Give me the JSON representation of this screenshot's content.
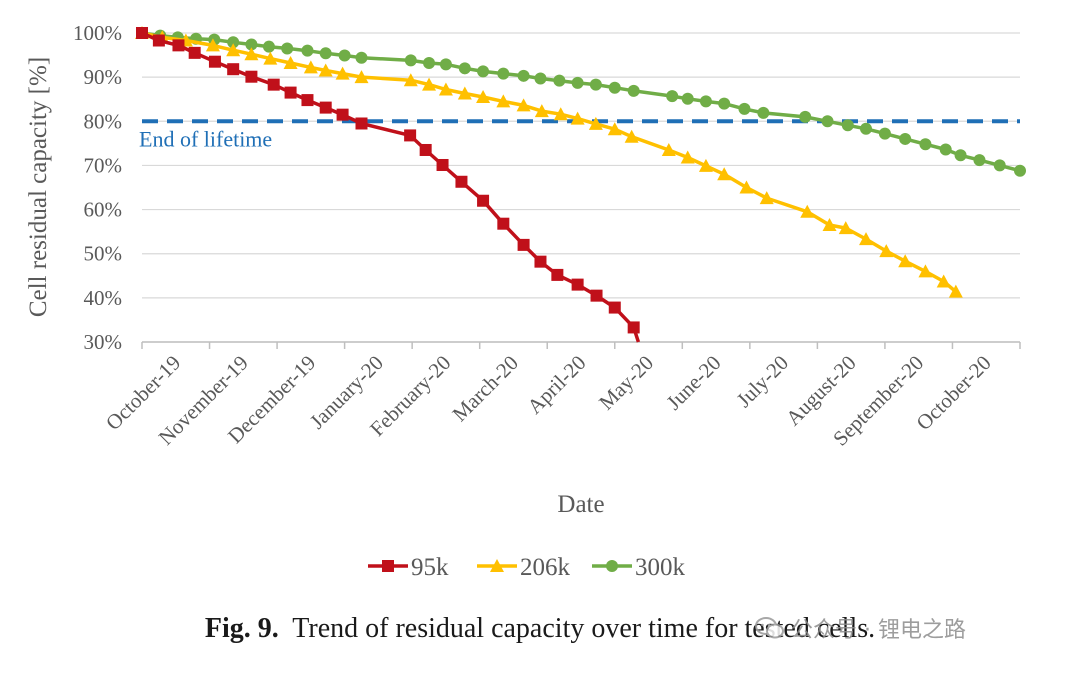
{
  "chart_data": {
    "type": "line",
    "xlabel": "Date",
    "ylabel": "Cell residual capacity [%]",
    "ylim": [
      30,
      100
    ],
    "y_ticks": [
      30,
      40,
      50,
      60,
      70,
      80,
      90,
      100
    ],
    "y_tick_labels": [
      "30%",
      "40%",
      "50%",
      "60%",
      "70%",
      "80%",
      "90%",
      "100%"
    ],
    "x_range_months": [
      0,
      13
    ],
    "categories": [
      "October-19",
      "November-19",
      "December-19",
      "January-20",
      "February-20",
      "March-20",
      "April-20",
      "May-20",
      "June-20",
      "July-20",
      "August-20",
      "September-20",
      "October-20"
    ],
    "reference_line": {
      "label": "End of lifetime",
      "value": 80,
      "color": "#1f6fb6"
    },
    "series": [
      {
        "name": "95k",
        "color": "#c0101a",
        "marker": "square",
        "points": [
          [
            0.0,
            100
          ],
          [
            0.25,
            98.3
          ],
          [
            0.54,
            97.2
          ],
          [
            0.78,
            95.5
          ],
          [
            1.08,
            93.5
          ],
          [
            1.35,
            91.8
          ],
          [
            1.62,
            90.1
          ],
          [
            1.95,
            88.3
          ],
          [
            2.2,
            86.5
          ],
          [
            2.45,
            84.8
          ],
          [
            2.72,
            83.1
          ],
          [
            2.97,
            81.5
          ],
          [
            3.25,
            79.5
          ],
          [
            3.97,
            76.8
          ],
          [
            4.2,
            73.5
          ],
          [
            4.45,
            70.1
          ],
          [
            4.73,
            66.3
          ],
          [
            5.05,
            62
          ],
          [
            5.35,
            56.8
          ],
          [
            5.65,
            52
          ],
          [
            5.9,
            48.2
          ],
          [
            6.15,
            45.2
          ],
          [
            6.45,
            43
          ],
          [
            6.73,
            40.5
          ],
          [
            7.0,
            37.8
          ],
          [
            7.28,
            33.3
          ],
          [
            7.35,
            30
          ]
        ]
      },
      {
        "name": "206k",
        "color": "#ffc000",
        "marker": "triangle",
        "points": [
          [
            0.0,
            100
          ],
          [
            0.3,
            99
          ],
          [
            0.65,
            98.3
          ],
          [
            1.05,
            97.2
          ],
          [
            1.35,
            96.1
          ],
          [
            1.62,
            95.2
          ],
          [
            1.9,
            94.2
          ],
          [
            2.2,
            93.2
          ],
          [
            2.5,
            92.2
          ],
          [
            2.72,
            91.5
          ],
          [
            2.97,
            90.8
          ],
          [
            3.25,
            90
          ],
          [
            3.98,
            89.3
          ],
          [
            4.25,
            88.3
          ],
          [
            4.5,
            87.2
          ],
          [
            4.78,
            86.3
          ],
          [
            5.05,
            85.5
          ],
          [
            5.35,
            84.5
          ],
          [
            5.65,
            83.6
          ],
          [
            5.92,
            82.3
          ],
          [
            6.2,
            81.6
          ],
          [
            6.45,
            80.6
          ],
          [
            6.72,
            79.4
          ],
          [
            7.0,
            78.2
          ],
          [
            7.25,
            76.5
          ],
          [
            7.8,
            73.5
          ],
          [
            8.08,
            71.8
          ],
          [
            8.35,
            69.9
          ],
          [
            8.62,
            68
          ],
          [
            8.95,
            65
          ],
          [
            9.25,
            62.6
          ],
          [
            9.85,
            59.5
          ],
          [
            10.18,
            56.5
          ],
          [
            10.42,
            55.8
          ],
          [
            10.72,
            53.3
          ],
          [
            11.02,
            50.6
          ],
          [
            11.3,
            48.3
          ],
          [
            11.6,
            46
          ],
          [
            11.87,
            43.7
          ],
          [
            12.05,
            41.4
          ]
        ]
      },
      {
        "name": "300k",
        "color": "#70ad47",
        "marker": "circle",
        "points": [
          [
            0.0,
            100
          ],
          [
            0.27,
            99.4
          ],
          [
            0.53,
            99
          ],
          [
            0.8,
            98.7
          ],
          [
            1.07,
            98.5
          ],
          [
            1.35,
            97.9
          ],
          [
            1.62,
            97.4
          ],
          [
            1.88,
            96.9
          ],
          [
            2.15,
            96.5
          ],
          [
            2.45,
            96
          ],
          [
            2.72,
            95.4
          ],
          [
            3.0,
            94.9
          ],
          [
            3.25,
            94.4
          ],
          [
            3.98,
            93.8
          ],
          [
            4.25,
            93.2
          ],
          [
            4.5,
            92.9
          ],
          [
            4.78,
            92
          ],
          [
            5.05,
            91.3
          ],
          [
            5.35,
            90.8
          ],
          [
            5.65,
            90.3
          ],
          [
            5.9,
            89.7
          ],
          [
            6.18,
            89.2
          ],
          [
            6.45,
            88.7
          ],
          [
            6.72,
            88.3
          ],
          [
            7.0,
            87.6
          ],
          [
            7.28,
            86.9
          ],
          [
            7.85,
            85.7
          ],
          [
            8.08,
            85.1
          ],
          [
            8.35,
            84.5
          ],
          [
            8.62,
            84
          ],
          [
            8.92,
            82.8
          ],
          [
            9.2,
            81.9
          ],
          [
            9.82,
            81
          ],
          [
            10.15,
            80
          ],
          [
            10.45,
            79.1
          ],
          [
            10.72,
            78.3
          ],
          [
            11.0,
            77.2
          ],
          [
            11.3,
            76
          ],
          [
            11.6,
            74.8
          ],
          [
            11.9,
            73.6
          ],
          [
            12.12,
            72.3
          ],
          [
            12.4,
            71.2
          ],
          [
            12.7,
            70
          ],
          [
            13.0,
            68.8
          ]
        ]
      }
    ],
    "legend": {
      "position": "bottom-center",
      "labels": [
        "95k",
        "206k",
        "300k"
      ]
    },
    "grid": true
  },
  "caption": {
    "prefix": "Fig. 9.",
    "text": "Trend of residual capacity over time for tested cells."
  },
  "watermark": {
    "text": "公众号 · 锂电之路"
  }
}
